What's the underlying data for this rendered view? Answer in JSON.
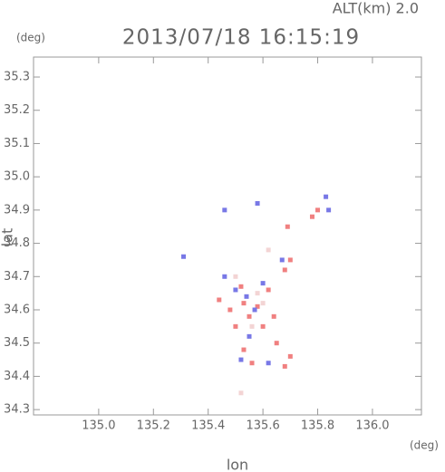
{
  "chart_data": {
    "type": "scatter",
    "title": "2013/07/18 16:15:19",
    "subtitle": "ALT(km) 2.0",
    "y_unit": "(deg)",
    "x_unit": "(deg)",
    "x_label": "lon",
    "y_label": "lat",
    "xlim": [
      134.762,
      136.179
    ],
    "ylim": [
      34.284,
      35.36
    ],
    "xticks": [
      {
        "value": 135,
        "label": "135.0"
      },
      135.2,
      135.4,
      135.6,
      135.8,
      {
        "value": 136,
        "label": "136.0"
      }
    ],
    "yticks": [
      34.3,
      34.4,
      34.5,
      34.6,
      34.7,
      34.8,
      34.9,
      {
        "value": 35,
        "label": "35.0"
      },
      35.1,
      35.2,
      35.3
    ],
    "series": [
      {
        "color": "#f08080",
        "x": [
          135.69,
          135.7,
          135.68,
          135.62,
          135.58,
          135.55,
          135.53,
          135.5,
          135.53,
          135.56,
          135.7,
          135.68,
          135.65,
          135.6,
          135.44,
          135.78,
          135.8,
          135.52,
          135.48,
          135.64
        ],
        "values": [
          34.85,
          34.75,
          34.72,
          34.66,
          34.61,
          34.58,
          34.62,
          34.55,
          34.48,
          34.44,
          34.46,
          34.43,
          34.5,
          34.55,
          34.63,
          34.88,
          34.9,
          34.67,
          34.6,
          34.58
        ]
      },
      {
        "color": "#7878e6",
        "x": [
          135.83,
          135.84,
          135.58,
          135.46,
          135.54,
          135.57,
          135.5,
          135.52,
          135.62,
          135.31,
          135.46,
          135.6,
          135.55,
          135.67
        ],
        "values": [
          34.94,
          34.9,
          34.92,
          34.9,
          34.64,
          34.6,
          34.66,
          34.45,
          34.44,
          34.76,
          34.7,
          34.68,
          34.52,
          34.75
        ]
      },
      {
        "color": "#f3d4d4",
        "x": [
          135.58,
          135.56,
          135.62,
          135.52,
          135.5,
          135.6
        ],
        "values": [
          34.65,
          34.55,
          34.78,
          34.35,
          34.7,
          34.62
        ]
      }
    ]
  }
}
